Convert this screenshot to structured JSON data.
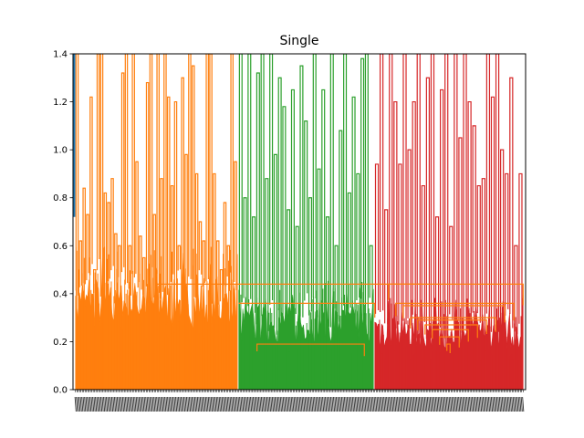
{
  "chart_data": {
    "type": "dendrogram",
    "title": "Single",
    "xlabel": "",
    "ylabel": "",
    "ylim": [
      0,
      1.4
    ],
    "yticks": [
      "0.0",
      "0.2",
      "0.4",
      "0.6",
      "0.8",
      "1.0",
      "1.2",
      "1.4"
    ],
    "grid": false,
    "colors": {
      "blue": "#1f77b4",
      "orange": "#ff7f0e",
      "green": "#2ca02c",
      "red": "#d62728"
    },
    "leaf_count": 330,
    "clusters": [
      {
        "color": "#ff7f0e",
        "leaf_start": 1,
        "leaf_end": 120,
        "merge_height": 0.46,
        "top_links": [
          1.45,
          0.62,
          0.84,
          0.73,
          1.22,
          0.5,
          1.4,
          1.45,
          0.82,
          0.78,
          0.88,
          0.65,
          0.6,
          1.32,
          1.46,
          0.6,
          1.45,
          0.95,
          0.64,
          0.55,
          1.28,
          1.4,
          0.73,
          1.45,
          0.88,
          1.45,
          1.22,
          0.85,
          1.2,
          0.6,
          1.3,
          0.98,
          1.45,
          1.35,
          0.9,
          0.7,
          0.62,
          1.45,
          1.4,
          0.9,
          0.62,
          0.5,
          0.78,
          0.6,
          1.45,
          0.95
        ]
      },
      {
        "color": "#2ca02c",
        "leaf_start": 121,
        "leaf_end": 220,
        "merge_height": 0.35,
        "top_links": [
          1.4,
          0.8,
          1.4,
          0.72,
          1.32,
          1.4,
          0.88,
          1.4,
          0.98,
          1.3,
          1.18,
          0.75,
          1.25,
          0.68,
          1.35,
          1.12,
          0.8,
          1.4,
          0.92,
          1.25,
          0.72,
          1.4,
          0.6,
          1.08,
          1.4,
          0.82,
          1.22,
          0.9,
          1.38,
          1.4,
          0.6
        ]
      },
      {
        "color": "#d62728",
        "leaf_start": 221,
        "leaf_end": 330,
        "merge_height": 0.3,
        "top_links": [
          0.94,
          1.4,
          0.75,
          1.4,
          1.2,
          0.94,
          1.4,
          1.0,
          1.2,
          1.4,
          0.85,
          1.3,
          1.4,
          0.72,
          1.25,
          1.4,
          0.68,
          1.4,
          1.05,
          1.4,
          1.2,
          1.1,
          0.85,
          0.88,
          1.4,
          1.22,
          1.4,
          1.0,
          0.9,
          1.3,
          0.6,
          0.9
        ]
      }
    ],
    "root": {
      "color": "#1f77b4",
      "height": 1.4
    }
  }
}
